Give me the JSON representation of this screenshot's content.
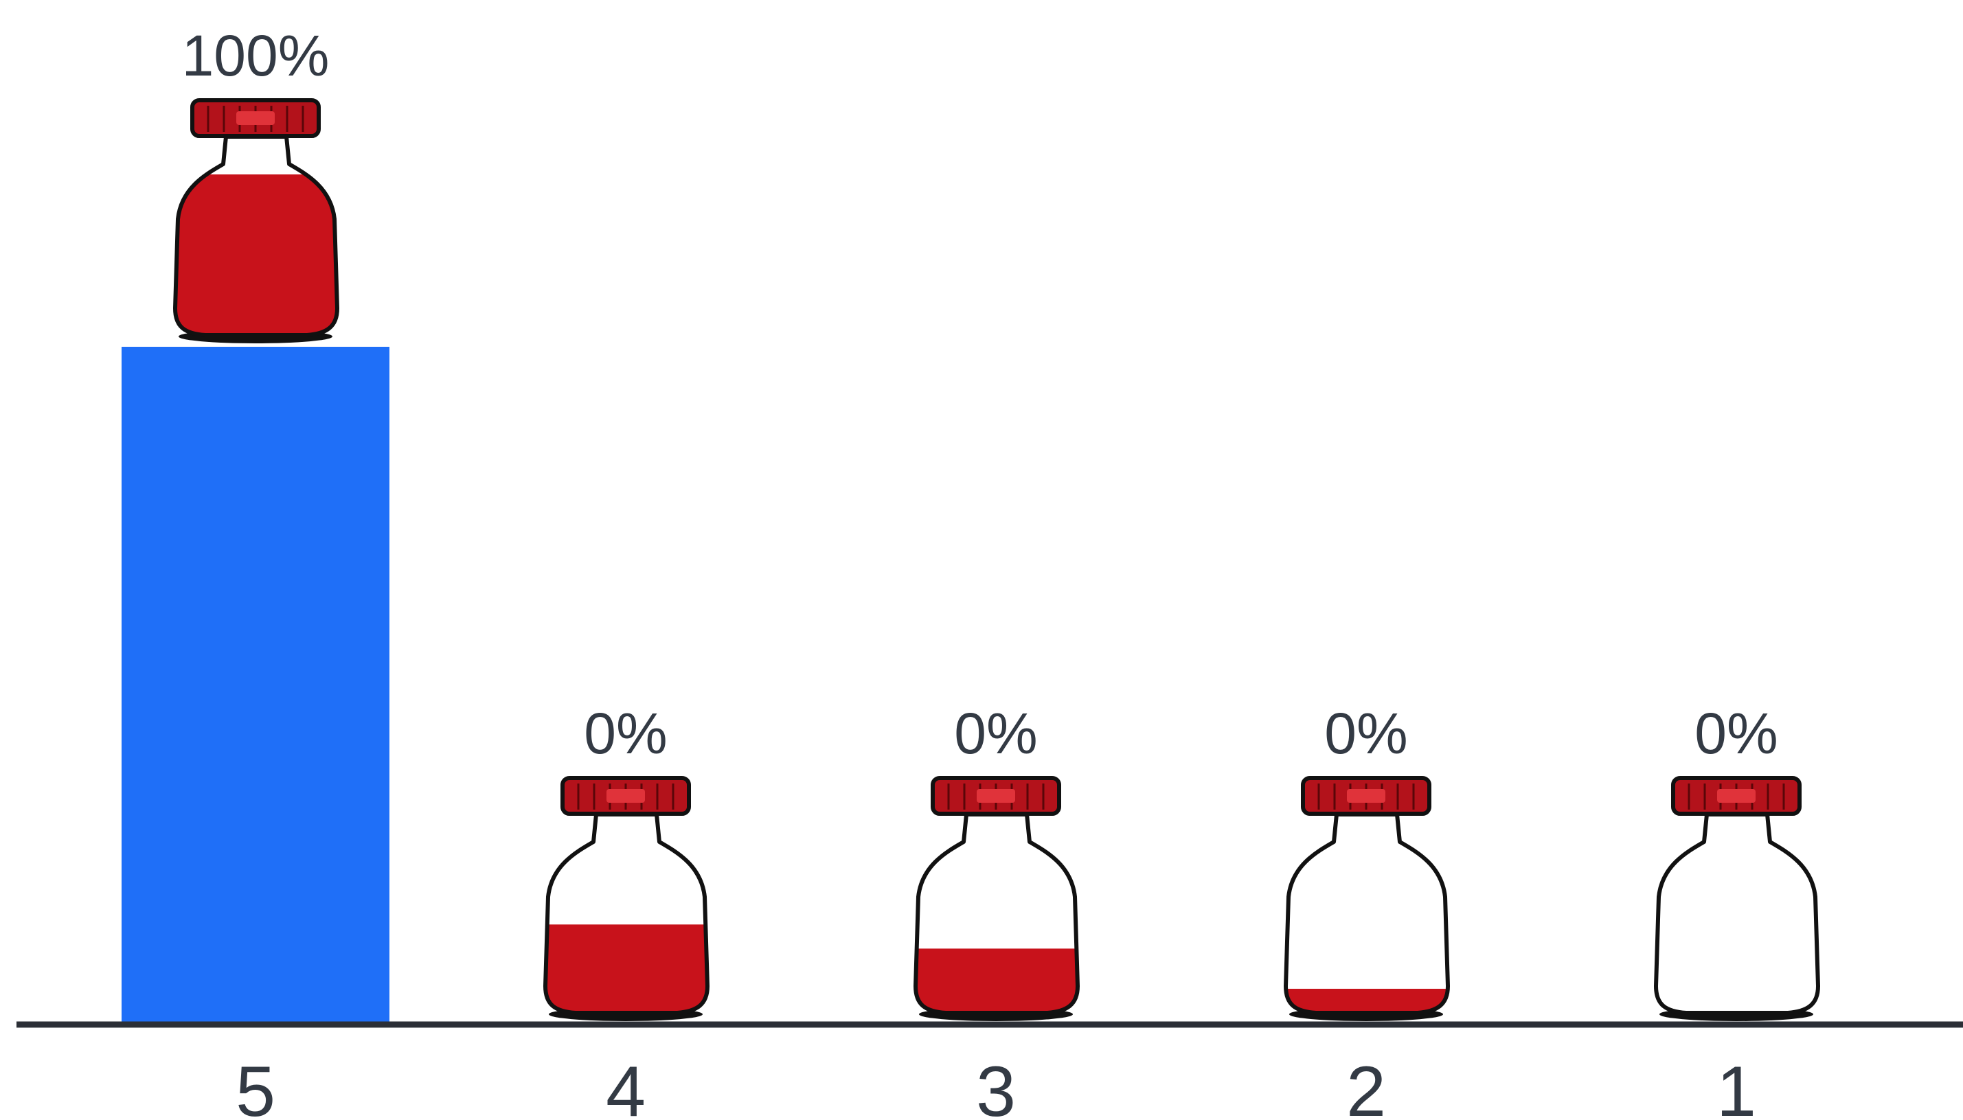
{
  "chart_data": {
    "type": "bar",
    "categories": [
      "5",
      "4",
      "3",
      "2",
      "1"
    ],
    "values": [
      100,
      0,
      0,
      0,
      0
    ],
    "value_labels": [
      "100%",
      "0%",
      "0%",
      "0%",
      "0%"
    ],
    "icon": "jar-icon",
    "icon_fill_levels": [
      1.0,
      0.55,
      0.4,
      0.15,
      0.0
    ],
    "ylim": [
      0,
      100
    ],
    "grid": false,
    "legend": "none",
    "colors": {
      "bar": "#1f6ff8",
      "axis": "#2b2f36",
      "text": "#333a44",
      "jar_liquid": "#c8121b",
      "jar_cap": "#b3121b",
      "jar_outline": "#111111"
    }
  }
}
